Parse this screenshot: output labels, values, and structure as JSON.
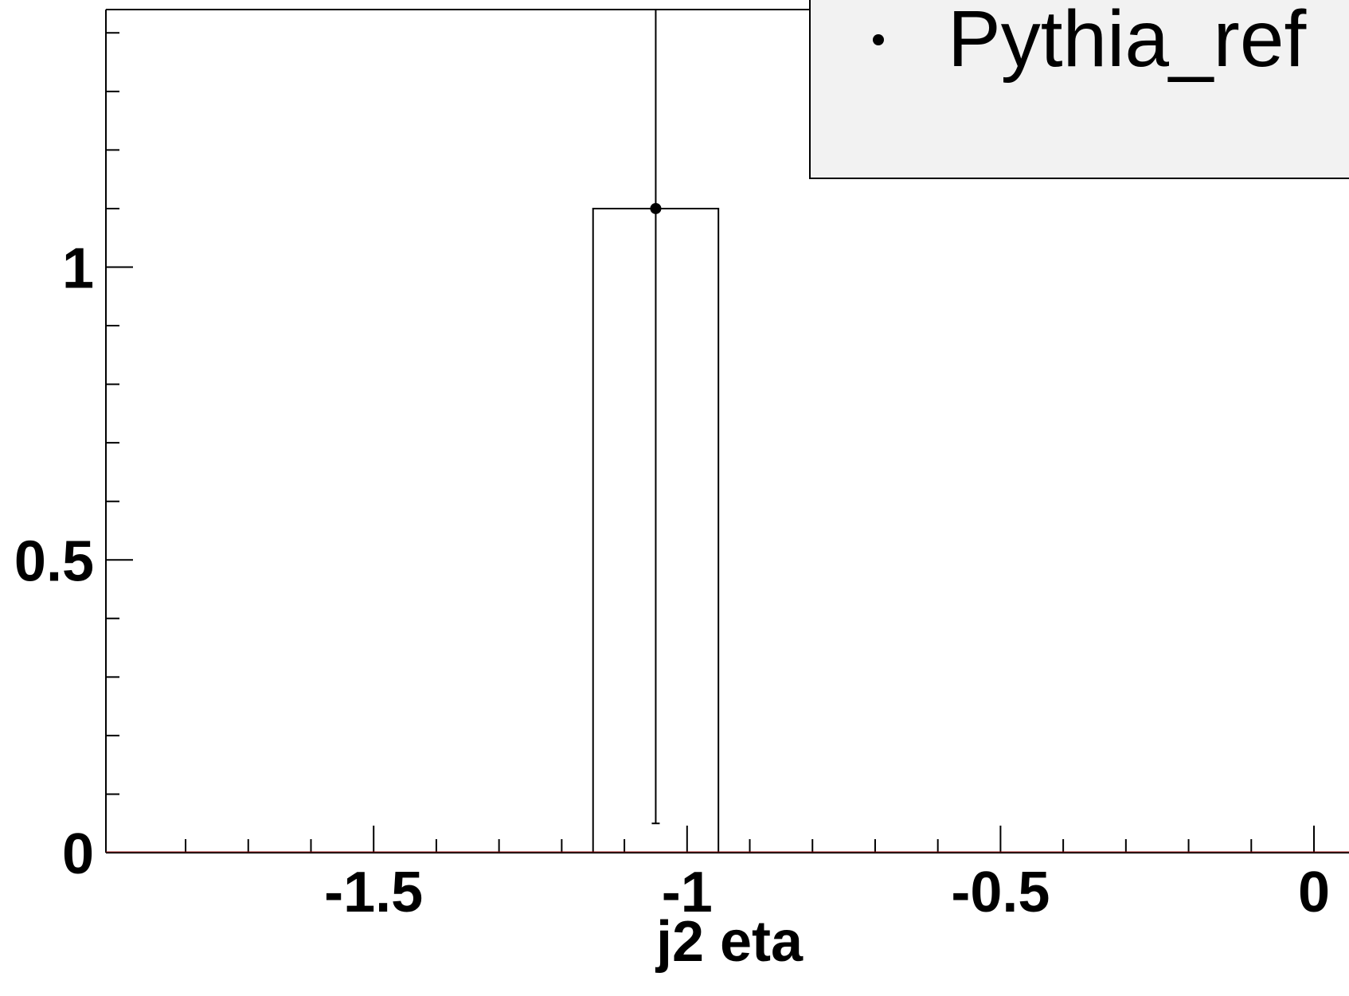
{
  "chart_data": {
    "type": "bar",
    "xlabel": "j2 eta",
    "ylabel": "",
    "xlim": [
      -1.9,
      0.15
    ],
    "ylim": [
      0,
      1.44
    ],
    "x_ticks": [
      {
        "value": -1.5,
        "label": "-1.5"
      },
      {
        "value": -1.0,
        "label": "-1"
      },
      {
        "value": -0.5,
        "label": "-0.5"
      },
      {
        "value": 0.0,
        "label": "0"
      }
    ],
    "x_minor_step": 0.1,
    "y_ticks": [
      {
        "value": 0.0,
        "label": "0"
      },
      {
        "value": 0.5,
        "label": "0.5"
      },
      {
        "value": 1.0,
        "label": "1"
      }
    ],
    "y_minor_step": 0.1,
    "histogram": {
      "bins": [
        {
          "low": -1.15,
          "high": -0.95,
          "value": 1.1
        }
      ]
    },
    "series": [
      {
        "name": "Pythia_ref",
        "marker": "dot",
        "points": [
          {
            "x": -1.05,
            "y": 1.1,
            "err_low": 1.05,
            "err_high": 1.44
          }
        ]
      }
    ],
    "legend": {
      "position": "top-right"
    },
    "grid": false
  }
}
